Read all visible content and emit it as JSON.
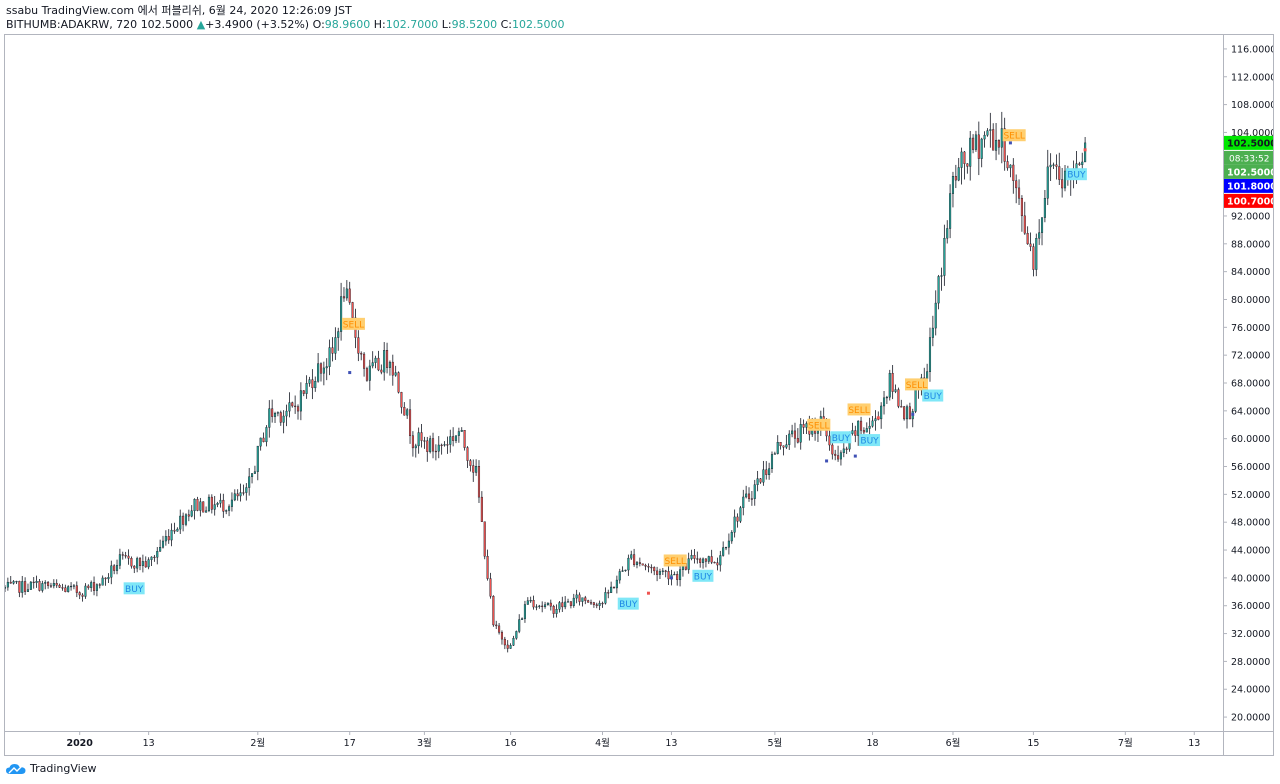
{
  "header": {
    "line1": "ssabu TradingView.com 에서 퍼블리쉬, 6월 24, 2020 12:26:09 JST",
    "symbol": "BITHUMB:ADAKRW, 720",
    "last": "102.5000",
    "change_arrow": "▲",
    "change": "+3.4900 (+3.52%)",
    "o_label": "O:",
    "o": "98.9600",
    "h_label": "H:",
    "h": "102.7000",
    "l_label": "L:",
    "l": "98.5200",
    "c_label": "C:",
    "c": "102.5000"
  },
  "footer": {
    "brand": "TradingView",
    "logo_icon": "tradingview-cloud-icon"
  },
  "colors": {
    "up": "#26a69a",
    "down": "#ef5350",
    "wick": "#131722",
    "buy_bg": "#7fe7f7",
    "sell_bg": "#ffcf70",
    "grid": "#e0e3eb",
    "green_tag": "#00e600",
    "blue_tag": "#0000ff",
    "red_tag": "#ff0000"
  },
  "chart_data": {
    "type": "candlestick",
    "ylim": [
      18,
      118
    ],
    "x_range": [
      "2019-12-19",
      "2020-07-18"
    ],
    "y_ticks": [
      "20.0000",
      "24.0000",
      "28.0000",
      "32.0000",
      "36.0000",
      "40.0000",
      "44.0000",
      "48.0000",
      "52.0000",
      "56.0000",
      "60.0000",
      "64.0000",
      "68.0000",
      "72.0000",
      "76.0000",
      "80.0000",
      "84.0000",
      "88.0000",
      "92.0000",
      "96.0000",
      "100.0000",
      "104.0000",
      "108.0000",
      "112.0000",
      "116.0000"
    ],
    "x_ticks": [
      {
        "date": "2020-01-01",
        "label": "2020"
      },
      {
        "date": "2020-01-13",
        "label": "13"
      },
      {
        "date": "2020-02-01",
        "label": "2월"
      },
      {
        "date": "2020-02-17",
        "label": "17"
      },
      {
        "date": "2020-03-01",
        "label": "3월"
      },
      {
        "date": "2020-03-16",
        "label": "16"
      },
      {
        "date": "2020-04-01",
        "label": "4월"
      },
      {
        "date": "2020-04-13",
        "label": "13"
      },
      {
        "date": "2020-05-01",
        "label": "5월"
      },
      {
        "date": "2020-05-18",
        "label": "18"
      },
      {
        "date": "2020-06-01",
        "label": "6월"
      },
      {
        "date": "2020-06-15",
        "label": "15"
      },
      {
        "date": "2020-07-01",
        "label": "7월"
      },
      {
        "date": "2020-07-13",
        "label": "13"
      }
    ],
    "price_tags": [
      {
        "value": 102.5,
        "text": "102.5000",
        "color": "green"
      },
      {
        "value": 101.8,
        "text": "101.8000",
        "color": "blue"
      },
      {
        "value": 100.7,
        "text": "100.7000",
        "color": "red"
      }
    ],
    "countdown": "08:33:52",
    "last_price_label": "102.5000",
    "trend": [
      {
        "date": "2019-12-19",
        "close": 38.5
      },
      {
        "date": "2019-12-25",
        "close": 39.0
      },
      {
        "date": "2020-01-01",
        "close": 38.0
      },
      {
        "date": "2020-01-05",
        "close": 39.5
      },
      {
        "date": "2020-01-08",
        "close": 42.5
      },
      {
        "date": "2020-01-13",
        "close": 42.0
      },
      {
        "date": "2020-01-17",
        "close": 47.0
      },
      {
        "date": "2020-01-21",
        "close": 50.5
      },
      {
        "date": "2020-01-26",
        "close": 50.5
      },
      {
        "date": "2020-01-30",
        "close": 52.0
      },
      {
        "date": "2020-02-03",
        "close": 63.5
      },
      {
        "date": "2020-02-07",
        "close": 64.0
      },
      {
        "date": "2020-02-11",
        "close": 69.5
      },
      {
        "date": "2020-02-14",
        "close": 72.0
      },
      {
        "date": "2020-02-16",
        "close": 81.5
      },
      {
        "date": "2020-02-17",
        "close": 78.0
      },
      {
        "date": "2020-02-20",
        "close": 69.0
      },
      {
        "date": "2020-02-24",
        "close": 72.0
      },
      {
        "date": "2020-02-28",
        "close": 60.0
      },
      {
        "date": "2020-03-03",
        "close": 58.5
      },
      {
        "date": "2020-03-07",
        "close": 61.0
      },
      {
        "date": "2020-03-10",
        "close": 55.0
      },
      {
        "date": "2020-03-13",
        "close": 33.0
      },
      {
        "date": "2020-03-16",
        "close": 30.0
      },
      {
        "date": "2020-03-19",
        "close": 37.0
      },
      {
        "date": "2020-03-23",
        "close": 35.5
      },
      {
        "date": "2020-03-28",
        "close": 37.0
      },
      {
        "date": "2020-04-01",
        "close": 36.5
      },
      {
        "date": "2020-04-06",
        "close": 43.0
      },
      {
        "date": "2020-04-10",
        "close": 41.0
      },
      {
        "date": "2020-04-14",
        "close": 40.5
      },
      {
        "date": "2020-04-17",
        "close": 43.0
      },
      {
        "date": "2020-04-21",
        "close": 42.5
      },
      {
        "date": "2020-04-25",
        "close": 50.0
      },
      {
        "date": "2020-04-29",
        "close": 55.0
      },
      {
        "date": "2020-05-02",
        "close": 59.5
      },
      {
        "date": "2020-05-06",
        "close": 61.0
      },
      {
        "date": "2020-05-09",
        "close": 62.5
      },
      {
        "date": "2020-05-12",
        "close": 56.5
      },
      {
        "date": "2020-05-15",
        "close": 61.0
      },
      {
        "date": "2020-05-18",
        "close": 62.0
      },
      {
        "date": "2020-05-21",
        "close": 68.0
      },
      {
        "date": "2020-05-24",
        "close": 63.5
      },
      {
        "date": "2020-05-27",
        "close": 68.0
      },
      {
        "date": "2020-05-29",
        "close": 79.0
      },
      {
        "date": "2020-06-01",
        "close": 97.0
      },
      {
        "date": "2020-06-04",
        "close": 101.0
      },
      {
        "date": "2020-06-07",
        "close": 104.0
      },
      {
        "date": "2020-06-10",
        "close": 102.0
      },
      {
        "date": "2020-06-12",
        "close": 95.0
      },
      {
        "date": "2020-06-15",
        "close": 86.0
      },
      {
        "date": "2020-06-18",
        "close": 100.0
      },
      {
        "date": "2020-06-21",
        "close": 97.0
      },
      {
        "date": "2020-06-24",
        "close": 102.5
      }
    ],
    "signals": [
      {
        "type": "BUY",
        "date": "2020-01-09",
        "price": 38.5
      },
      {
        "type": "SELL",
        "date": "2020-02-16",
        "price": 76.5
      },
      {
        "type": "BUY",
        "date": "2020-04-04",
        "price": 36.3
      },
      {
        "type": "SELL",
        "date": "2020-04-12",
        "price": 42.5
      },
      {
        "type": "BUY",
        "date": "2020-04-17",
        "price": 40.3
      },
      {
        "type": "SELL",
        "date": "2020-05-07",
        "price": 62.0
      },
      {
        "type": "BUY",
        "date": "2020-05-11",
        "price": 60.2
      },
      {
        "type": "SELL",
        "date": "2020-05-14",
        "price": 64.2
      },
      {
        "type": "BUY",
        "date": "2020-05-16",
        "price": 59.8
      },
      {
        "type": "SELL",
        "date": "2020-05-24",
        "price": 67.8
      },
      {
        "type": "BUY",
        "date": "2020-05-27",
        "price": 66.2
      },
      {
        "type": "SELL",
        "date": "2020-06-10",
        "price": 103.6
      },
      {
        "type": "BUY",
        "date": "2020-06-21",
        "price": 98.0
      }
    ],
    "signal_dots": [
      {
        "date": "2020-02-17",
        "price": 69.5,
        "color": "blue"
      },
      {
        "date": "2020-04-13",
        "price": 40.0,
        "color": "blue"
      },
      {
        "date": "2020-05-10",
        "price": 56.8,
        "color": "blue"
      },
      {
        "date": "2020-05-15",
        "price": 57.5,
        "color": "blue"
      },
      {
        "date": "2020-05-25",
        "price": 63.5,
        "color": "blue"
      },
      {
        "date": "2020-06-11",
        "price": 102.5,
        "color": "blue"
      },
      {
        "date": "2020-04-09",
        "price": 37.8,
        "color": "red"
      },
      {
        "date": "2020-05-19",
        "price": 63.0,
        "color": "red"
      },
      {
        "date": "2020-06-24",
        "price": 101.5,
        "color": "red"
      }
    ]
  }
}
